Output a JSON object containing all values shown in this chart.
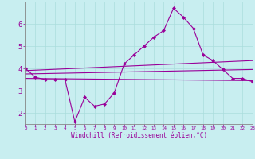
{
  "bg_color": "#c8eef0",
  "grid_color": "#aadddd",
  "line_color": "#990099",
  "x_label": "Windchill (Refroidissement éolien,°C)",
  "xlim": [
    0,
    23
  ],
  "ylim": [
    1.5,
    7.0
  ],
  "yticks": [
    2,
    3,
    4,
    5,
    6
  ],
  "xtick_labels": [
    "0",
    "1",
    "2",
    "3",
    "4",
    "5",
    "6",
    "7",
    "8",
    "9",
    "10",
    "11",
    "12",
    "13",
    "14",
    "15",
    "16",
    "17",
    "18",
    "19",
    "20",
    "21",
    "22",
    "23"
  ],
  "main_x": [
    0,
    1,
    2,
    3,
    4,
    5,
    6,
    7,
    8,
    9,
    10,
    11,
    12,
    13,
    14,
    15,
    16,
    17,
    18,
    19,
    20,
    21,
    22,
    23
  ],
  "main_y": [
    4.0,
    3.6,
    3.5,
    3.5,
    3.5,
    1.6,
    2.7,
    2.3,
    2.4,
    2.9,
    4.2,
    4.6,
    5.0,
    5.4,
    5.7,
    6.7,
    6.3,
    5.8,
    4.6,
    4.35,
    3.95,
    3.55,
    3.55,
    3.4
  ],
  "line1_x": [
    0,
    23
  ],
  "line1_y": [
    3.55,
    3.45
  ],
  "line2_x": [
    0,
    23
  ],
  "line2_y": [
    3.75,
    3.95
  ],
  "line3_x": [
    0,
    23
  ],
  "line3_y": [
    3.9,
    4.35
  ]
}
